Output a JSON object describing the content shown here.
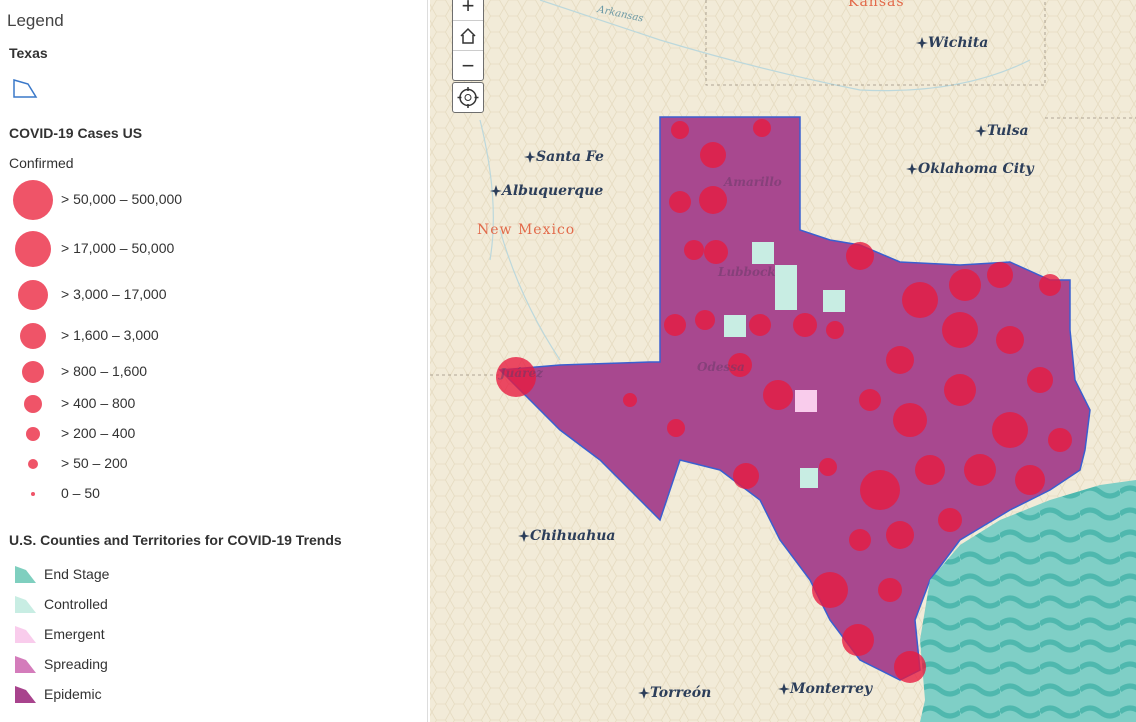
{
  "legend": {
    "title": "Legend",
    "texas_layer": {
      "title": "Texas"
    },
    "cases_layer": {
      "title": "COVID-19 Cases US",
      "field": "Confirmed",
      "classes": [
        "> 50,000 – 500,000",
        "> 17,000 – 50,000",
        "> 3,000 – 17,000",
        "> 1,600 – 3,000",
        "> 800 – 1,600",
        "> 400 – 800",
        "> 200 – 400",
        "> 50 – 200",
        "0 – 50"
      ]
    },
    "trends_layer": {
      "title": "U.S. Counties and Territories for COVID-19 Trends",
      "classes": [
        "End Stage",
        "Controlled",
        "Emergent",
        "Spreading",
        "Epidemic"
      ]
    }
  },
  "map": {
    "cities": [
      "Wichita",
      "Tulsa",
      "Oklahoma City",
      "Santa Fe",
      "Albuquerque",
      "Chihuahua",
      "Torreón",
      "Monterrey",
      "Amarillo",
      "Lubbock",
      "Odessa",
      "Juárez"
    ],
    "states": [
      "New Mexico",
      "Kansas"
    ],
    "rivers": [
      "Arkansas"
    ]
  }
}
